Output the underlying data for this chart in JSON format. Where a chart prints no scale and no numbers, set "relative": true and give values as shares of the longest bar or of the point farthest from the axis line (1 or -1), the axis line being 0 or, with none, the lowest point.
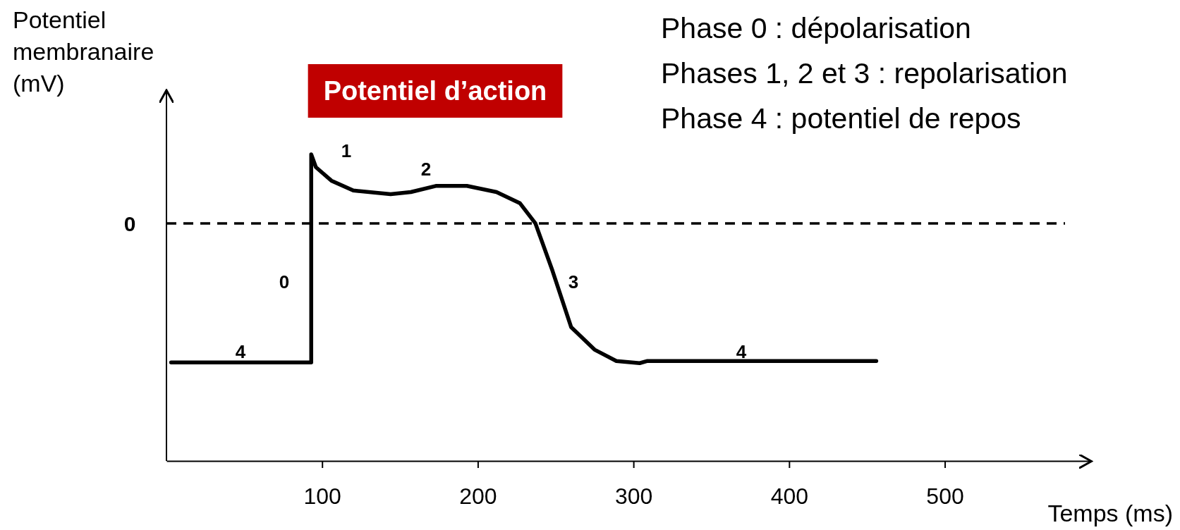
{
  "chart_data": {
    "type": "line",
    "title": "Potentiel d’action",
    "xlabel": "Temps (ms)",
    "ylabel": "Potentiel membranaire (mV)",
    "relative": true,
    "xlim": [
      0,
      594
    ],
    "xticks": [
      100,
      200,
      300,
      400,
      500
    ],
    "grid": false,
    "marker": "none",
    "line_style": "solid",
    "series": [
      {
        "color": "#000000",
        "x": [
          3,
          93,
          93,
          96,
          106,
          120,
          144,
          157,
          173,
          193,
          212,
          227,
          237,
          248,
          260,
          275,
          289,
          304,
          309,
          456
        ],
        "values": [
          0.321,
          0.321,
          1,
          0.958,
          0.914,
          0.882,
          0.87,
          0.877,
          0.897,
          0.897,
          0.877,
          0.841,
          0.775,
          0.62,
          0.436,
          0.363,
          0.326,
          0.319,
          0.326,
          0.326
        ]
      }
    ],
    "ref_lines": [
      {
        "axis": "y",
        "value": 0.775,
        "line_style": "dashed",
        "color": "#000000"
      }
    ],
    "annotations": [
      "4",
      "0",
      "1",
      "2",
      "3",
      "4",
      "0",
      "Phase 0 : dépolarisation",
      "Phases 1, 2 et 3 : repolarisation",
      "Phase 4 : potentiel de repos"
    ]
  }
}
